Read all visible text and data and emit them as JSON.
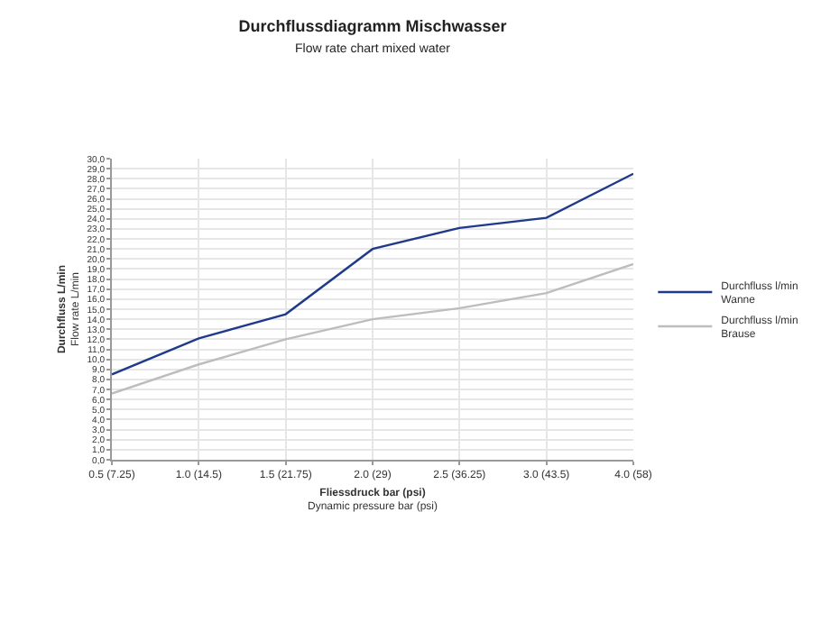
{
  "chart_data": {
    "type": "line",
    "title": "Durchflussdiagramm Mischwasser",
    "subtitle": "Flow rate chart mixed water",
    "xlabel": "Fliessdruck bar (psi)\nDynamic pressure bar (psi)",
    "ylabel": "Durchfluss L/min\nFlow rate L/min",
    "categories": [
      "0.5 (7.25)",
      "1.0 (14.5)",
      "1.5 (21.75)",
      "2.0 (29)",
      "2.5 (36.25)",
      "3.0 (43.5)",
      "4.0 (58)"
    ],
    "series": [
      {
        "name": "Durchfluss l/min\nWanne",
        "color": "#1f3a8a",
        "values": [
          8.5,
          12.1,
          14.5,
          21.0,
          23.1,
          24.1,
          28.5
        ]
      },
      {
        "name": "Durchfluss l/min\nBrause",
        "color": "#bdbdbd",
        "values": [
          6.6,
          9.5,
          12.0,
          14.0,
          15.1,
          16.6,
          19.5
        ]
      }
    ],
    "ylim": [
      0,
      30
    ],
    "yticks": [
      {
        "value": 0,
        "label": "0,0"
      },
      {
        "value": 1,
        "label": "1,0"
      },
      {
        "value": 2,
        "label": "2,0"
      },
      {
        "value": 3,
        "label": "3,0"
      },
      {
        "value": 4,
        "label": "4,0"
      },
      {
        "value": 5,
        "label": "5,0"
      },
      {
        "value": 6,
        "label": "6,0"
      },
      {
        "value": 7,
        "label": "7,0"
      },
      {
        "value": 8,
        "label": "8,0"
      },
      {
        "value": 9,
        "label": "9,0"
      },
      {
        "value": 10,
        "label": "10,0"
      },
      {
        "value": 11,
        "label": "11,0"
      },
      {
        "value": 12,
        "label": "12,0"
      },
      {
        "value": 13,
        "label": "13,0"
      },
      {
        "value": 14,
        "label": "14,0"
      },
      {
        "value": 15,
        "label": "15,0"
      },
      {
        "value": 16,
        "label": "16,0"
      },
      {
        "value": 17,
        "label": "17,0"
      },
      {
        "value": 18,
        "label": "18,0"
      },
      {
        "value": 19,
        "label": "19,0"
      },
      {
        "value": 20,
        "label": "20,0"
      },
      {
        "value": 21,
        "label": "21,0"
      },
      {
        "value": 22,
        "label": "22,0"
      },
      {
        "value": 23,
        "label": "23,0"
      },
      {
        "value": 24,
        "label": "24,0"
      },
      {
        "value": 25,
        "label": "25,0"
      },
      {
        "value": 26,
        "label": "26,0"
      },
      {
        "value": 27,
        "label": "27,0"
      },
      {
        "value": 28,
        "label": "28,0"
      },
      {
        "value": 29,
        "label": "29,0"
      },
      {
        "value": 30,
        "label": "30,0"
      }
    ],
    "grid": true,
    "legend": "right",
    "marker": "none",
    "line_style": "solid"
  }
}
